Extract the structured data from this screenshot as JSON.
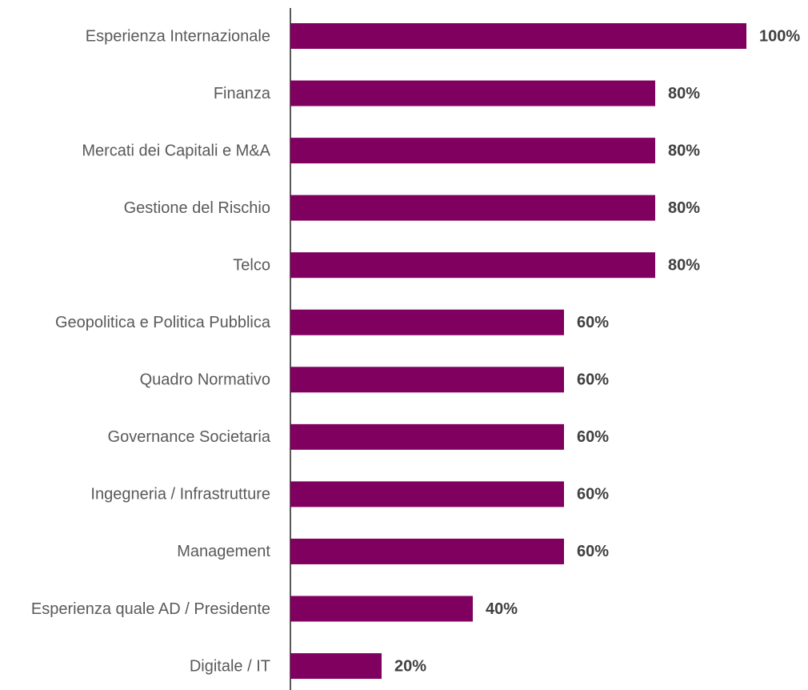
{
  "chart_data": {
    "type": "barh",
    "categories": [
      "Esperienza Internazionale",
      "Finanza",
      "Mercati dei Capitali e M&A",
      "Gestione del Rischio",
      "Telco",
      "Geopolitica e Politica Pubblica",
      "Quadro Normativo",
      "Governance Societaria",
      "Ingegneria / Infrastrutture",
      "Management",
      "Esperienza quale AD / Presidente",
      "Digitale / IT"
    ],
    "values": [
      100,
      80,
      80,
      80,
      80,
      60,
      60,
      60,
      60,
      60,
      40,
      20
    ],
    "value_labels": [
      "100%",
      "80%",
      "80%",
      "80%",
      "80%",
      "60%",
      "60%",
      "60%",
      "60%",
      "60%",
      "40%",
      "20%"
    ],
    "color": "#800060",
    "xlim": [
      0,
      100
    ]
  }
}
